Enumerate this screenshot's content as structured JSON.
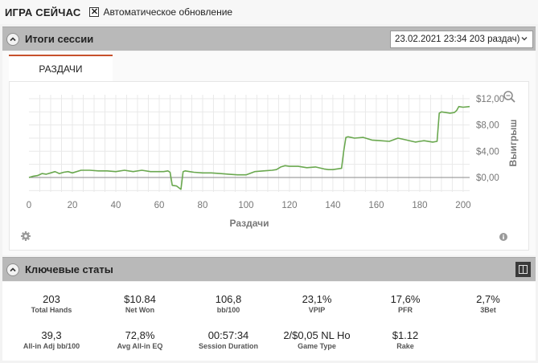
{
  "header": {
    "title": "ИГРА СЕЙЧАС",
    "auto_refresh_checked": true,
    "auto_refresh_label": "Автоматическое обновление"
  },
  "session": {
    "title": "Итоги сессии",
    "selected": "23.02.2021 23:34 203 раздач)",
    "tab_label": "РАЗДАЧИ"
  },
  "chart_data": {
    "type": "line",
    "xlabel": "Раздачи",
    "ylabel": "Выигрыш",
    "xlim": [
      0,
      203
    ],
    "ylim": [
      -2.2,
      12.6
    ],
    "x_ticks": [
      "0",
      "20",
      "40",
      "60",
      "80",
      "100",
      "120",
      "140",
      "160",
      "180",
      "200"
    ],
    "y_ticks": [
      "$12,00",
      "$8,00",
      "$4,00",
      "$0,00"
    ],
    "line_color": "#6aa84f",
    "series": [
      {
        "x": [
          0,
          2,
          4,
          6,
          8,
          10,
          12,
          14,
          16,
          18,
          20,
          24,
          28,
          32,
          36,
          40,
          44,
          48,
          52,
          56,
          60,
          62,
          64,
          65,
          66,
          68,
          70,
          71,
          72,
          74,
          76,
          80,
          84,
          88,
          92,
          96,
          100,
          104,
          108,
          112,
          114,
          116,
          118,
          120,
          124,
          128,
          132,
          136,
          138,
          140,
          144,
          145,
          146,
          147,
          150,
          154,
          158,
          162,
          166,
          170,
          174,
          178,
          180,
          182,
          186,
          188,
          189,
          190,
          194,
          196,
          197,
          198,
          200,
          203
        ],
        "y": [
          0.0,
          0.2,
          0.3,
          0.6,
          0.5,
          0.7,
          0.9,
          0.6,
          0.8,
          0.9,
          0.7,
          1.1,
          1.1,
          1.0,
          1.0,
          0.9,
          1.1,
          0.9,
          1.1,
          0.9,
          0.9,
          0.9,
          1.0,
          0.8,
          -1.2,
          -1.3,
          -1.8,
          0.9,
          1.0,
          0.9,
          0.8,
          0.7,
          0.7,
          0.6,
          0.5,
          0.4,
          0.4,
          0.9,
          1.0,
          1.1,
          1.2,
          1.6,
          1.8,
          1.7,
          1.7,
          1.5,
          1.6,
          1.3,
          1.2,
          1.2,
          1.4,
          4.0,
          6.1,
          6.2,
          6.0,
          6.1,
          5.7,
          5.6,
          5.5,
          6.0,
          5.7,
          5.4,
          5.5,
          5.6,
          5.4,
          5.5,
          9.8,
          10.0,
          9.8,
          9.9,
          10.2,
          10.8,
          10.7,
          10.8
        ]
      }
    ]
  },
  "key_stats": {
    "title": "Ключевые статы",
    "items": [
      {
        "value": "203",
        "label": "Total Hands"
      },
      {
        "value": "$10.84",
        "label": "Net Won"
      },
      {
        "value": "106,8",
        "label": "bb/100"
      },
      {
        "value": "23,1%",
        "label": "VPIP"
      },
      {
        "value": "17,6%",
        "label": "PFR"
      },
      {
        "value": "2,7%",
        "label": "3Bet"
      },
      {
        "value": "39,3",
        "label": "All-in Adj bb/100"
      },
      {
        "value": "72,8%",
        "label": "Avg All-in EQ"
      },
      {
        "value": "00:57:34",
        "label": "Session Duration"
      },
      {
        "value": "2/$0,05 NL Ho",
        "label": "Game Type"
      },
      {
        "value": "$1.12",
        "label": "Rake"
      }
    ]
  },
  "icons": {
    "zoom": "magnifier-icon",
    "settings": "gear-icon",
    "info": "info-icon",
    "layout": "panel-toggle-icon"
  }
}
